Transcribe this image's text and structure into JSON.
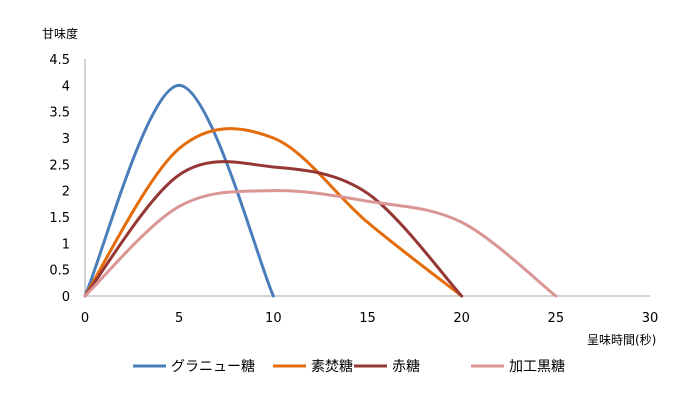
{
  "chart_data": {
    "type": "line",
    "title": "",
    "xlabel": "呈味時間(秒)",
    "ylabel": "甘味度",
    "xlim": [
      0,
      30
    ],
    "ylim": [
      0,
      4.5
    ],
    "xticks": [
      0,
      5,
      10,
      15,
      20,
      25,
      30
    ],
    "yticks": [
      0,
      0.5,
      1,
      1.5,
      2,
      2.5,
      3,
      3.5,
      4,
      4.5
    ],
    "grid": false,
    "legend": "bottom",
    "smooth": true,
    "series": [
      {
        "name": "グラニュー糖",
        "color": "#4a7ebb",
        "x": [
          0,
          5,
          10
        ],
        "y": [
          0,
          4,
          0
        ]
      },
      {
        "name": "素焚糖",
        "color": "#e46c0a",
        "x": [
          0,
          5,
          10,
          15,
          20
        ],
        "y": [
          0,
          2.8,
          3,
          1.4,
          0
        ]
      },
      {
        "name": "赤糖",
        "color": "#953735",
        "x": [
          0,
          5,
          10,
          15,
          20
        ],
        "y": [
          0,
          2.3,
          2.45,
          1.95,
          0
        ]
      },
      {
        "name": "加工黒糖",
        "color": "#d99694",
        "x": [
          0,
          5,
          10,
          15,
          20,
          25
        ],
        "y": [
          0,
          1.7,
          2,
          1.8,
          1.4,
          0
        ]
      }
    ]
  }
}
